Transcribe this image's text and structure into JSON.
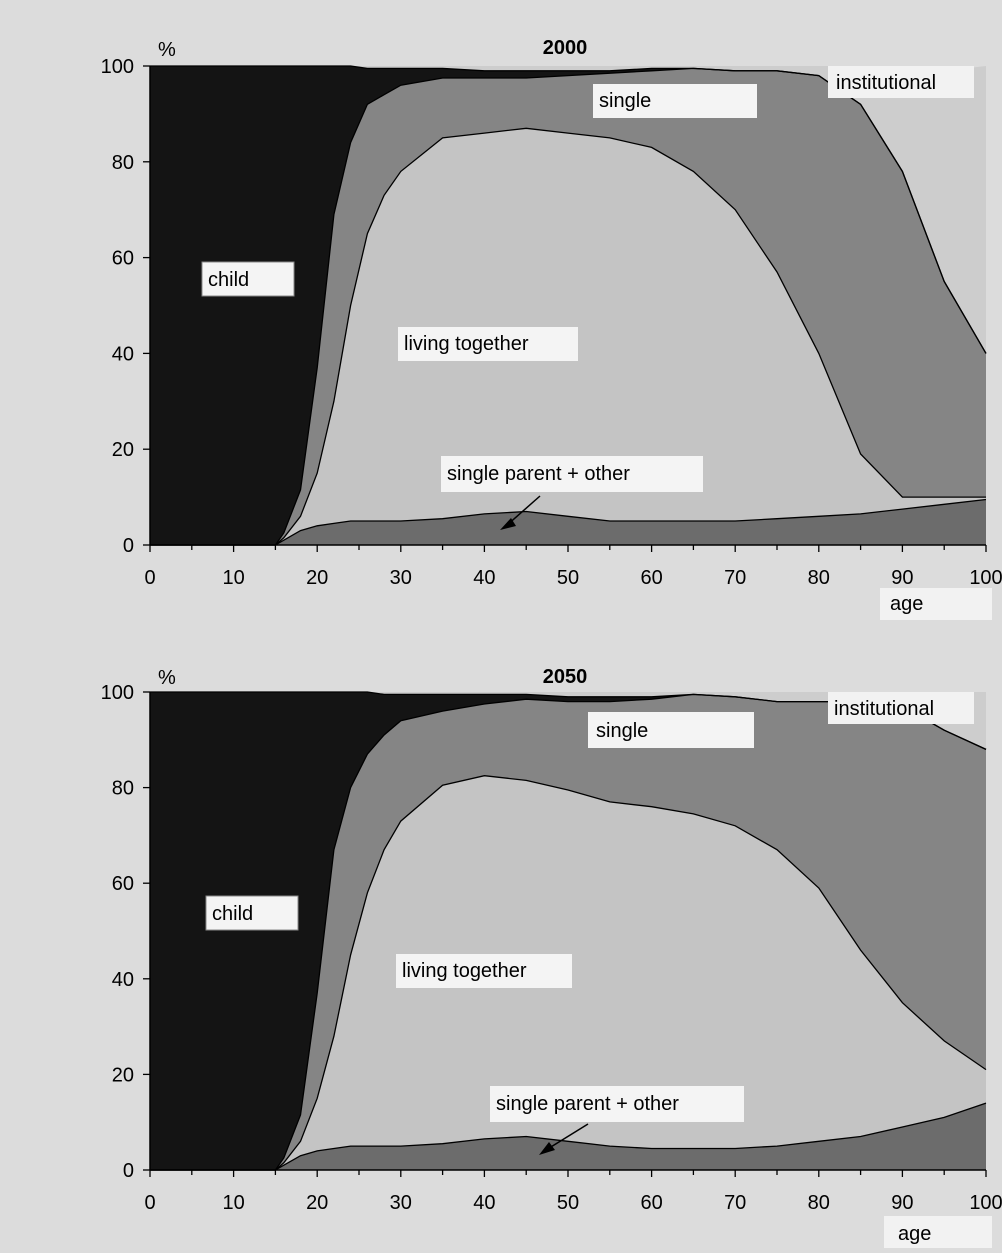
{
  "chart_data": [
    {
      "type": "area",
      "stacked": true,
      "title": "2000",
      "ylabel": "%",
      "xlabel": "age",
      "xlim": [
        0,
        100
      ],
      "ylim": [
        0,
        100
      ],
      "xticks": [
        0,
        10,
        20,
        30,
        40,
        50,
        60,
        70,
        80,
        90,
        100
      ],
      "yticks": [
        0,
        20,
        40,
        60,
        80,
        100
      ],
      "x": [
        0,
        14,
        15,
        16,
        18,
        20,
        22,
        24,
        26,
        28,
        30,
        35,
        40,
        45,
        50,
        55,
        60,
        65,
        70,
        75,
        80,
        85,
        90,
        95,
        100
      ],
      "series": [
        {
          "name": "single parent + other",
          "values": [
            0,
            0,
            0,
            1,
            3,
            4,
            4.5,
            5,
            5,
            5,
            5,
            5.5,
            6.5,
            7,
            6,
            5,
            5,
            5,
            5,
            5.5,
            6,
            6.5,
            7.5,
            8.5,
            9.5
          ]
        },
        {
          "name": "living together",
          "values": [
            0,
            0,
            0,
            0.5,
            3,
            11,
            25.5,
            45,
            60,
            68,
            73,
            79.5,
            79.5,
            80,
            80,
            80,
            78,
            73,
            65,
            51.5,
            34,
            12.5,
            2.5,
            1.5,
            0.5
          ]
        },
        {
          "name": "single",
          "values": [
            0,
            0,
            0,
            1,
            5.5,
            22,
            39,
            34,
            27,
            21,
            18,
            12.5,
            11.5,
            10.5,
            12,
            13.5,
            16,
            21.5,
            29,
            42,
            58,
            73,
            68,
            45,
            30
          ]
        },
        {
          "name": "child",
          "values": [
            100,
            100,
            100,
            97.5,
            88.5,
            63,
            31,
            16,
            7.5,
            5.5,
            3.5,
            2,
            1.5,
            1.5,
            1,
            0.5,
            0.5,
            0,
            0,
            0,
            0,
            0,
            0,
            0,
            0
          ]
        },
        {
          "name": "institutional",
          "values": [
            0,
            0,
            0,
            0,
            0,
            0,
            0,
            0,
            0.5,
            0.5,
            0.5,
            0.5,
            1,
            1,
            1,
            1,
            0.5,
            0.5,
            1,
            1,
            2,
            8,
            22,
            44,
            60
          ]
        }
      ],
      "annotations": [
        "institutional",
        "single",
        "child",
        "living together",
        "single parent + other"
      ]
    },
    {
      "type": "area",
      "stacked": true,
      "title": "2050",
      "ylabel": "%",
      "xlabel": "age",
      "xlim": [
        0,
        100
      ],
      "ylim": [
        0,
        100
      ],
      "xticks": [
        0,
        10,
        20,
        30,
        40,
        50,
        60,
        70,
        80,
        90,
        100
      ],
      "yticks": [
        0,
        20,
        40,
        60,
        80,
        100
      ],
      "x": [
        0,
        14,
        15,
        16,
        18,
        20,
        22,
        24,
        26,
        28,
        30,
        35,
        40,
        45,
        50,
        55,
        60,
        65,
        70,
        75,
        80,
        85,
        90,
        95,
        100
      ],
      "series": [
        {
          "name": "single parent + other",
          "values": [
            0,
            0,
            0,
            1,
            3,
            4,
            4.5,
            5,
            5,
            5,
            5,
            5.5,
            6.5,
            7,
            6,
            5,
            4.5,
            4.5,
            4.5,
            5,
            6,
            7,
            9,
            11,
            14
          ]
        },
        {
          "name": "living together",
          "values": [
            0,
            0,
            0,
            0.5,
            3,
            11,
            23.5,
            40,
            53,
            62,
            68,
            75,
            76,
            74.5,
            73.5,
            72,
            71.5,
            70,
            67.5,
            62,
            53,
            39,
            26,
            16,
            7
          ]
        },
        {
          "name": "single",
          "values": [
            0,
            0,
            0,
            1,
            5.5,
            22,
            39,
            35,
            29,
            24,
            21,
            15.5,
            15,
            17,
            18.5,
            21,
            22.5,
            25,
            27,
            31,
            39,
            52,
            62,
            65,
            67
          ]
        },
        {
          "name": "child",
          "values": [
            100,
            100,
            100,
            97.5,
            88.5,
            63,
            33,
            20,
            13,
            8.5,
            5.5,
            3.5,
            2,
            1,
            1,
            1,
            0.5,
            0,
            0,
            0,
            0,
            0,
            0,
            0,
            0
          ]
        },
        {
          "name": "institutional",
          "values": [
            0,
            0,
            0,
            0,
            0,
            0,
            0,
            0,
            0,
            0.5,
            0.5,
            0.5,
            0.5,
            0.5,
            1,
            1,
            1,
            0.5,
            1,
            2,
            2,
            2,
            3,
            8,
            12
          ]
        }
      ],
      "annotations": [
        "institutional",
        "single",
        "child",
        "living together",
        "single parent + other"
      ]
    }
  ]
}
